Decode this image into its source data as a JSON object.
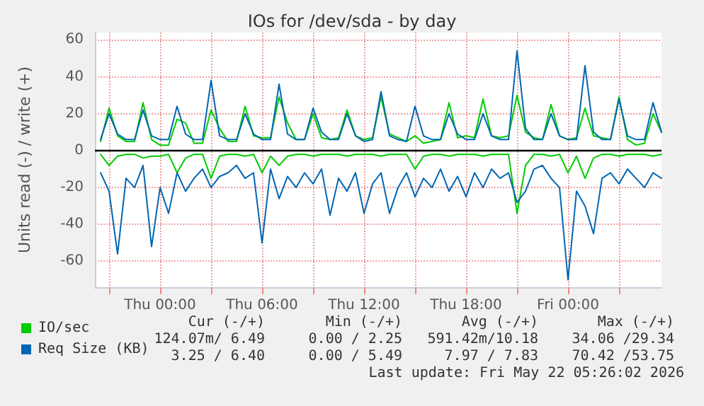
{
  "chart_data": {
    "type": "line",
    "title": "IOs for /dev/sda - by day",
    "ylabel": "Units read (-) / write (+)",
    "x": [
      "2026-05-20T20:30",
      "2026-05-20T21:00",
      "2026-05-20T21:30",
      "2026-05-20T22:00",
      "2026-05-20T22:30",
      "2026-05-20T23:00",
      "2026-05-20T23:30",
      "2026-05-21T00:00",
      "2026-05-21T00:30",
      "2026-05-21T01:00",
      "2026-05-21T01:30",
      "2026-05-21T02:00",
      "2026-05-21T02:30",
      "2026-05-21T03:00",
      "2026-05-21T03:30",
      "2026-05-21T04:00",
      "2026-05-21T04:30",
      "2026-05-21T05:00",
      "2026-05-21T05:30",
      "2026-05-21T06:00",
      "2026-05-21T06:30",
      "2026-05-21T07:00",
      "2026-05-21T07:30",
      "2026-05-21T08:00",
      "2026-05-21T08:30",
      "2026-05-21T09:00",
      "2026-05-21T09:30",
      "2026-05-21T10:00",
      "2026-05-21T10:30",
      "2026-05-21T11:00",
      "2026-05-21T11:30",
      "2026-05-21T12:00",
      "2026-05-21T12:30",
      "2026-05-21T13:00",
      "2026-05-21T13:30",
      "2026-05-21T14:00",
      "2026-05-21T14:30",
      "2026-05-21T15:00",
      "2026-05-21T15:30",
      "2026-05-21T16:00",
      "2026-05-21T16:30",
      "2026-05-21T17:00",
      "2026-05-21T17:30",
      "2026-05-21T18:00",
      "2026-05-21T18:30",
      "2026-05-21T19:00",
      "2026-05-21T19:30",
      "2026-05-21T20:00",
      "2026-05-21T20:30",
      "2026-05-21T21:00",
      "2026-05-21T21:30",
      "2026-05-21T22:00",
      "2026-05-21T22:30",
      "2026-05-21T23:00",
      "2026-05-21T23:30",
      "2026-05-22T00:00",
      "2026-05-22T00:30",
      "2026-05-22T01:00",
      "2026-05-22T01:30",
      "2026-05-22T02:00",
      "2026-05-22T02:30",
      "2026-05-22T03:00",
      "2026-05-22T03:30",
      "2026-05-22T04:00",
      "2026-05-22T04:30",
      "2026-05-22T05:00",
      "2026-05-22T05:30"
    ],
    "xlim": [
      "2026-05-20T20:10",
      "2026-05-22T05:30"
    ],
    "xticks": [
      {
        "value": "2026-05-20T21:00",
        "label": null
      },
      {
        "value": "2026-05-21T00:00",
        "label": "Thu 00:00"
      },
      {
        "value": "2026-05-21T03:00",
        "label": null
      },
      {
        "value": "2026-05-21T06:00",
        "label": "Thu 06:00"
      },
      {
        "value": "2026-05-21T09:00",
        "label": null
      },
      {
        "value": "2026-05-21T12:00",
        "label": "Thu 12:00"
      },
      {
        "value": "2026-05-21T15:00",
        "label": null
      },
      {
        "value": "2026-05-21T18:00",
        "label": "Thu 18:00"
      },
      {
        "value": "2026-05-21T21:00",
        "label": null
      },
      {
        "value": "2026-05-22T00:00",
        "label": "Fri 00:00"
      },
      {
        "value": "2026-05-22T03:00",
        "label": null
      }
    ],
    "ylim": [
      -74,
      64
    ],
    "yticks": [
      -60,
      -40,
      -20,
      0,
      20,
      40,
      60
    ],
    "grid": true,
    "legend": "bottom left",
    "marker": "none",
    "line_style": "solid",
    "ref_lines": [
      {
        "axis": "y",
        "value": 0,
        "color": "#000000"
      }
    ],
    "series": [
      {
        "name": "IO/sec",
        "color": "#00cc00",
        "values": [
          5,
          23,
          8,
          5,
          5,
          26,
          6,
          3,
          3,
          17,
          15,
          4,
          4,
          22,
          12,
          5,
          5,
          24,
          8,
          7,
          7,
          29,
          15,
          6,
          6,
          20,
          7,
          6,
          7,
          22,
          8,
          6,
          7,
          29,
          9,
          7,
          5,
          8,
          4,
          5,
          6,
          26,
          7,
          8,
          7,
          28,
          8,
          7,
          8,
          30,
          10,
          7,
          6,
          25,
          8,
          6,
          7,
          23,
          8,
          7,
          6,
          29,
          6,
          3,
          4,
          20,
          10
        ]
      },
      {
        "color": "#00cc00",
        "values": [
          -2,
          -8,
          -3,
          -2,
          -2,
          -4,
          -3,
          -3,
          -2,
          -12,
          -4,
          -2,
          -2,
          -15,
          -3,
          -2,
          -2,
          -3,
          -2,
          -12,
          -3,
          -8,
          -3,
          -2,
          -2,
          -3,
          -2,
          -2,
          -2,
          -3,
          -2,
          -2,
          -2,
          -3,
          -2,
          -2,
          -2,
          -10,
          -3,
          -2,
          -2,
          -3,
          -2,
          -2,
          -2,
          -3,
          -2,
          -2,
          -2,
          -34,
          -8,
          -2,
          -2,
          -3,
          -2,
          -12,
          -3,
          -15,
          -4,
          -2,
          -2,
          -3,
          -2,
          -2,
          -2,
          -3,
          -2
        ]
      },
      {
        "name": "Req Size (KB)",
        "color": "#0066b3",
        "values": [
          6,
          20,
          9,
          6,
          6,
          22,
          8,
          6,
          6,
          24,
          9,
          6,
          6,
          38,
          8,
          6,
          6,
          20,
          9,
          6,
          6,
          36,
          9,
          6,
          6,
          23,
          10,
          6,
          6,
          20,
          8,
          5,
          6,
          32,
          8,
          6,
          5,
          24,
          8,
          6,
          6,
          20,
          9,
          6,
          6,
          20,
          8,
          6,
          6,
          54,
          12,
          6,
          6,
          20,
          8,
          6,
          6,
          46,
          10,
          6,
          6,
          28,
          8,
          6,
          6,
          26,
          10
        ]
      },
      {
        "color": "#0066b3",
        "values": [
          -12,
          -22,
          -56,
          -15,
          -20,
          -8,
          -52,
          -20,
          -34,
          -12,
          -22,
          -15,
          -10,
          -20,
          -14,
          -12,
          -8,
          -15,
          -12,
          -50,
          -10,
          -26,
          -14,
          -20,
          -12,
          -18,
          -10,
          -35,
          -15,
          -22,
          -12,
          -34,
          -18,
          -12,
          -34,
          -20,
          -12,
          -25,
          -15,
          -20,
          -10,
          -22,
          -14,
          -25,
          -12,
          -20,
          -10,
          -15,
          -12,
          -28,
          -22,
          -10,
          -8,
          -15,
          -20,
          -70,
          -22,
          -30,
          -45,
          -15,
          -12,
          -18,
          -10,
          -15,
          -20,
          -12,
          -15
        ]
      }
    ],
    "annotations": [
      "Cur (-/+)",
      "Min (-/+)",
      "Avg (-/+)",
      "Max (-/+)",
      "124.07m/ 6.49",
      "0.00 / 2.25",
      "591.42m/10.18",
      "34.06 /29.34",
      "3.25 / 6.40",
      "0.00 / 5.49",
      "7.97 / 7.83",
      "70.42 /53.75",
      "Last update: Fri May 22 05:26:02 2026"
    ]
  }
}
